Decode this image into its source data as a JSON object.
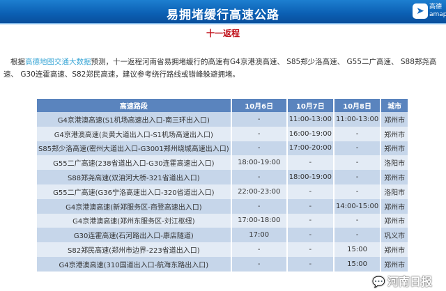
{
  "header": {
    "title": "易拥堵缓行高速公路",
    "logo_text_top": "高德",
    "logo_text_bottom": "amap"
  },
  "subtitle": "十一返程",
  "paragraph": {
    "prefix": "根据",
    "highlight": "高德地图交通大数据",
    "suffix": "预测，十一返程河南省易拥堵缓行的高速有G4京港澳高速、 S85郑少洛高速、 G55二广高速、 S88郑尧高速、 G30连霍高速、S82郑民高速，建议参考绕行路线或错峰躲避拥堵。"
  },
  "table": {
    "headers": [
      "高速路段",
      "10月6日",
      "10月7日",
      "10月8日",
      "城市"
    ],
    "rows": [
      [
        "G4京港澳高速(S1机场高速出入口-南三环出入口)",
        "-",
        "11:00-13:00",
        "11:00-13:00",
        "郑州市"
      ],
      [
        "G4京港澳高速(炎黄大道出入口-S1机场高速出入口)",
        "-",
        "16:00-19:00",
        "-",
        "郑州市"
      ],
      [
        "S85郑少洛高速(密州大道出入口-G3001郑州绕城高速出入口)",
        "-",
        "17:00-20:00",
        "-",
        "郑州市"
      ],
      [
        "G55二广高速(238省道出入口-G30连霍高速出入口)",
        "18:00-19:00",
        "-",
        "-",
        "洛阳市"
      ],
      [
        "S88郑尧高速(双洎河大桥-321省道出入口)",
        "-",
        "18:00-19:00",
        "-",
        "郑州市"
      ],
      [
        "G55二广高速(G36宁洛高速出入口-320省道出入口)",
        "22:00-23:00",
        "-",
        "-",
        "洛阳市"
      ],
      [
        "G4京港澳高速(新郑服务区-商登高速出入口)",
        "-",
        "-",
        "14:00-15:00",
        "郑州市"
      ],
      [
        "G4京港澳高速(郑州东服务区-刘江枢纽)",
        "17:00-18:00",
        "-",
        "-",
        "郑州市"
      ],
      [
        "G30连霍高速(石河路出入口-康店隧道)",
        "17:00",
        "-",
        "-",
        "巩义市"
      ],
      [
        "S82郑民高速(郑州市边界-223省道出入口)",
        "-",
        "-",
        "15:00",
        "郑州市"
      ],
      [
        "G4京港澳高速(310国道出入口-航海东路出入口)",
        "-",
        "-",
        "15:00",
        "郑州市"
      ]
    ]
  },
  "watermark": "河南日报",
  "colors": {
    "header_bar": "#0b5fb3",
    "subtitle": "#c0121b",
    "table_header": "#5a84be",
    "row_odd": "#c6d6ea",
    "row_even": "#e3ebf5",
    "highlight": "#3ba7d6"
  }
}
